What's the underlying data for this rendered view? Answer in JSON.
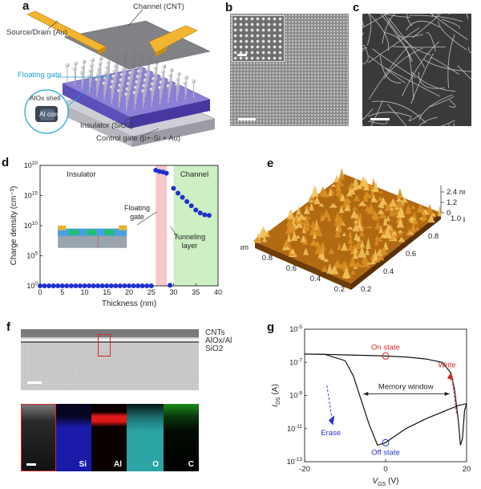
{
  "panels": {
    "a": {
      "letter": "a",
      "labels": {
        "channel": "Channel (CNT)",
        "source_drain": "Source/Drain (Au)",
        "floating_gate": "Floating gate",
        "shell": "AlOx shell",
        "core": "Al core",
        "insulator": "Insulator (SiO2)",
        "control_gate": "Control gate (p+-Si + Au)"
      }
    },
    "b": {
      "letter": "b"
    },
    "c": {
      "letter": "c"
    },
    "d": {
      "letter": "d",
      "region_insulator": "Insulator",
      "region_channel": "Channel",
      "label_floating_gate": "Floating\ngate",
      "label_tunneling": "Tunneling\nlayer"
    },
    "e": {
      "letter": "e",
      "z_ticks": [
        "2.4 nm",
        "1.2",
        "0"
      ],
      "x_ticks": [
        "1.0 μm",
        "0.8",
        "0.6",
        "0.4",
        "0.2"
      ],
      "y_ticks": [
        "1.0 μm",
        "0.8",
        "0.6",
        "0.4",
        "0.2"
      ]
    },
    "f": {
      "letter": "f",
      "layer_labels": [
        "CNTs",
        "AlOx/Al",
        "SiO2"
      ],
      "map_labels": [
        "",
        "Si",
        "Al",
        "O",
        "C"
      ],
      "map_colors": [
        "#8a8a8a",
        "#1a1aa8",
        "#d01818",
        "#28a0a0",
        "#1c8c1c"
      ]
    },
    "g": {
      "letter": "g",
      "annotations": {
        "on_state": "On state",
        "off_state": "Off state",
        "write": "Write",
        "erase": "Erase",
        "memory_window": "Memory window"
      }
    }
  },
  "chart_data": [
    {
      "panel": "d",
      "type": "scatter",
      "xlabel": "Thickness (nm)",
      "ylabel": "Charge density (cm⁻³)",
      "xlim": [
        0,
        40
      ],
      "ylim_log10": [
        0,
        20
      ],
      "y_scale": "log",
      "x_ticks": [
        0,
        5,
        10,
        15,
        20,
        25,
        30,
        35,
        40
      ],
      "y_tick_labels": [
        "10^0",
        "10^5",
        "10^10",
        "10^15",
        "10^20"
      ],
      "y_tick_exponents": [
        0,
        5,
        10,
        15,
        20
      ],
      "shaded_regions": [
        {
          "name": "Floating gate",
          "x": [
            26,
            28.5
          ],
          "color": "#f6c7cc"
        },
        {
          "name": "Channel",
          "x": [
            30,
            40
          ],
          "color": "#ccefc4"
        }
      ],
      "series": [
        {
          "x": [
            0,
            1,
            2,
            3,
            4,
            5,
            6,
            7,
            8,
            9,
            10,
            11,
            12,
            13,
            14,
            15,
            16,
            17,
            18,
            19,
            20,
            21,
            22,
            23,
            24,
            25,
            26,
            26.8,
            27.6,
            28.4,
            29.2,
            30,
            31,
            32,
            33,
            34,
            35,
            36,
            37,
            38
          ],
          "log10_y": [
            0,
            0,
            0,
            0,
            0,
            0,
            0,
            0,
            0,
            0,
            0,
            0,
            0,
            0,
            0,
            0,
            0,
            0,
            0,
            0,
            0,
            0,
            0,
            0,
            0,
            0,
            19.2,
            19.0,
            18.9,
            18.7,
            0.1,
            16.2,
            15.4,
            14.7,
            14.0,
            13.3,
            12.6,
            12.1,
            11.8,
            11.7
          ],
          "color": "#1f2fd0"
        }
      ]
    },
    {
      "panel": "g",
      "type": "line",
      "xlabel": "V_GS (V)",
      "ylabel": "I_DS (A)",
      "xlim": [
        -20,
        20
      ],
      "x_ticks": [
        -20,
        0,
        20
      ],
      "ylim_log10": [
        -13,
        -5
      ],
      "y_scale": "log",
      "y_tick_labels": [
        "10^-5",
        "10^-7",
        "10^-9",
        "10^-11",
        "10^-13"
      ],
      "y_tick_exponents": [
        -5,
        -7,
        -9,
        -11,
        -13
      ],
      "series": [
        {
          "name": "erase_sweep",
          "x": [
            -20,
            -15,
            -10,
            -5,
            0,
            5,
            10,
            14,
            16,
            17,
            18,
            18.5,
            19,
            19.5,
            20
          ],
          "log10_y": [
            -6.5,
            -6.52,
            -6.55,
            -6.58,
            -6.62,
            -6.68,
            -6.8,
            -7.0,
            -7.6,
            -8.6,
            -10.6,
            -12.0,
            -11.6,
            -9.9,
            -9.5
          ],
          "color": "#111111"
        },
        {
          "name": "write_sweep",
          "x": [
            -20,
            -15,
            -10,
            -8,
            -6,
            -4,
            -2,
            0,
            2,
            5,
            10,
            15,
            18,
            20
          ],
          "log10_y": [
            -6.5,
            -6.52,
            -6.9,
            -7.8,
            -9.3,
            -10.8,
            -12.0,
            -11.85,
            -11.5,
            -11.0,
            -10.4,
            -9.9,
            -9.6,
            -9.5
          ],
          "color": "#111111"
        }
      ]
    }
  ]
}
